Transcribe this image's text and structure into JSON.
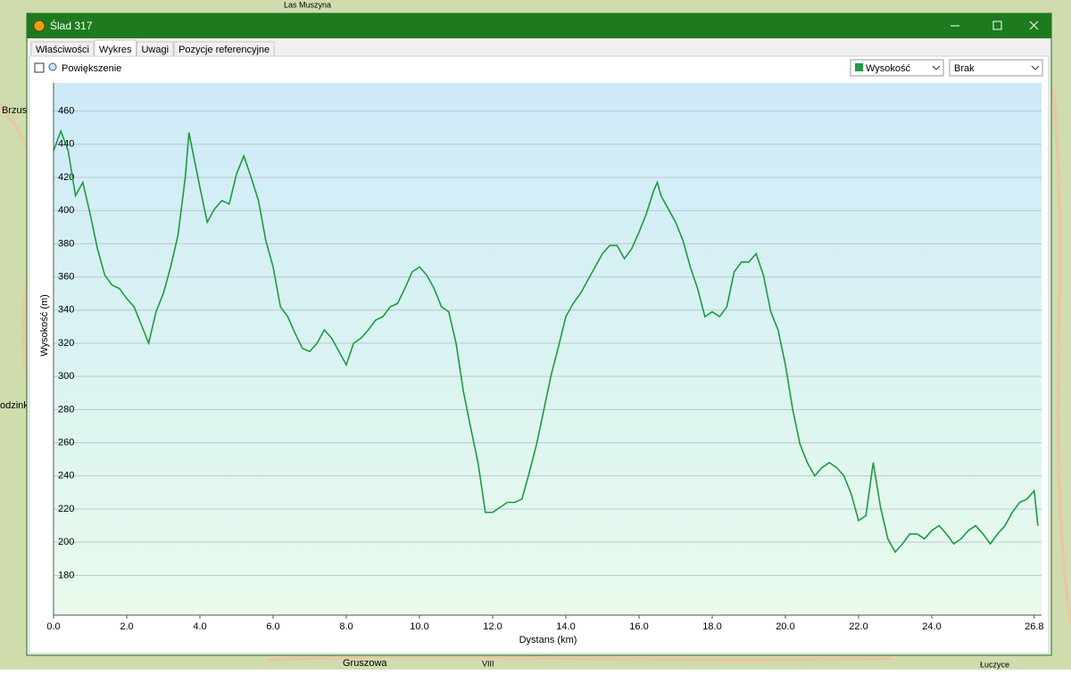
{
  "window": {
    "title": "Ślad 317"
  },
  "tabs": [
    "Właściwości",
    "Wykres",
    "Uwagi",
    "Pozycje referencyjne"
  ],
  "toolbar": {
    "zoom_label": "Powiększenie",
    "second_series": "Brak"
  },
  "map": {
    "labels": [
      "Las Muszyna",
      "Brzus",
      "odzink",
      "Gruszowa",
      "VIII",
      "Łuczyce"
    ]
  },
  "chart_data": {
    "type": "line",
    "xlabel": "Dystans  (km)",
    "ylabel": "Wysokość (m)",
    "xlim": [
      0,
      27.0
    ],
    "ylim": [
      156,
      477
    ],
    "xticks": [
      {
        "value": 0,
        "label": "0.0"
      },
      {
        "value": 2,
        "label": "2.0"
      },
      {
        "value": 4,
        "label": "4.0"
      },
      {
        "value": 6,
        "label": "6.0"
      },
      {
        "value": 8,
        "label": "8.0"
      },
      {
        "value": 10,
        "label": "10.0"
      },
      {
        "value": 12,
        "label": "12.0"
      },
      {
        "value": 14,
        "label": "14.0"
      },
      {
        "value": 16,
        "label": "16.0"
      },
      {
        "value": 18,
        "label": "18.0"
      },
      {
        "value": 20,
        "label": "20.0"
      },
      {
        "value": 22,
        "label": "22.0"
      },
      {
        "value": 24,
        "label": "24.0"
      },
      {
        "value": 26.8,
        "label": "26.8"
      }
    ],
    "yticks": [
      180,
      200,
      220,
      240,
      260,
      280,
      300,
      320,
      340,
      360,
      380,
      400,
      420,
      440,
      460
    ],
    "grid": true,
    "x": [
      0,
      0.2,
      0.4,
      0.6,
      0.8,
      1.0,
      1.2,
      1.4,
      1.6,
      1.8,
      2.0,
      2.2,
      2.4,
      2.6,
      2.8,
      3.0,
      3.2,
      3.4,
      3.6,
      3.7,
      3.8,
      4.0,
      4.2,
      4.4,
      4.6,
      4.8,
      5.0,
      5.2,
      5.4,
      5.6,
      5.8,
      6.0,
      6.2,
      6.4,
      6.6,
      6.8,
      7.0,
      7.2,
      7.4,
      7.6,
      7.8,
      8.0,
      8.2,
      8.4,
      8.6,
      8.8,
      9.0,
      9.2,
      9.4,
      9.6,
      9.8,
      10.0,
      10.2,
      10.4,
      10.6,
      10.8,
      11.0,
      11.2,
      11.4,
      11.6,
      11.8,
      12.0,
      12.2,
      12.4,
      12.6,
      12.8,
      13.0,
      13.2,
      13.4,
      13.6,
      13.8,
      14.0,
      14.2,
      14.4,
      14.6,
      14.8,
      15.0,
      15.2,
      15.4,
      15.6,
      15.8,
      16.0,
      16.2,
      16.4,
      16.5,
      16.6,
      16.8,
      17.0,
      17.2,
      17.4,
      17.6,
      17.8,
      18.0,
      18.2,
      18.4,
      18.6,
      18.8,
      19.0,
      19.2,
      19.4,
      19.6,
      19.8,
      20.0,
      20.2,
      20.4,
      20.6,
      20.8,
      21.0,
      21.2,
      21.4,
      21.6,
      21.8,
      22.0,
      22.2,
      22.4,
      22.6,
      22.8,
      23.0,
      23.2,
      23.4,
      23.6,
      23.8,
      24.0,
      24.2,
      24.4,
      24.6,
      24.8,
      25.0,
      25.2,
      25.4,
      25.6,
      25.8,
      26.0,
      26.2,
      26.4,
      26.6,
      26.8,
      26.9
    ],
    "series": [
      {
        "name": "Wysokość",
        "color": "#1e9b3e",
        "values": [
          436,
          448,
          436,
          409,
          417,
          398,
          377,
          361,
          355,
          353,
          347,
          342,
          331,
          320,
          339,
          350,
          366,
          385,
          420,
          447,
          436,
          414,
          393,
          401,
          406,
          404,
          422,
          433,
          420,
          406,
          382,
          366,
          342,
          336,
          326,
          317,
          315,
          320,
          328,
          323,
          315,
          307,
          320,
          323,
          328,
          334,
          336,
          342,
          344,
          353,
          363,
          366,
          361,
          353,
          342,
          339,
          320,
          291,
          269,
          248,
          218,
          218,
          221,
          224,
          224,
          226,
          242,
          259,
          280,
          301,
          318,
          336,
          344,
          350,
          358,
          366,
          374,
          379,
          379,
          371,
          377,
          387,
          398,
          412,
          417,
          409,
          401,
          393,
          382,
          366,
          353,
          336,
          339,
          336,
          342,
          363,
          369,
          369,
          374,
          361,
          339,
          328,
          307,
          280,
          259,
          248,
          240,
          245,
          248,
          245,
          240,
          229,
          213,
          216,
          248,
          221,
          202,
          194,
          199,
          205,
          205,
          202,
          207,
          210,
          205,
          199,
          202,
          207,
          210,
          205,
          199,
          205,
          210,
          218,
          224,
          226,
          231,
          210
        ]
      }
    ]
  }
}
